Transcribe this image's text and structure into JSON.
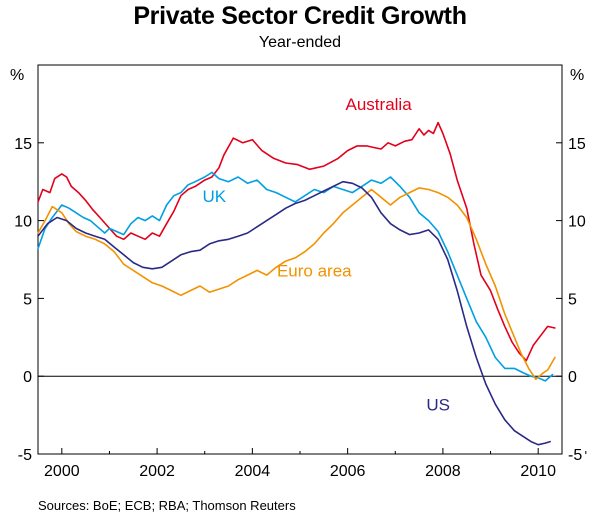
{
  "chart_data": {
    "type": "line",
    "title": "Private Sector Credit Growth",
    "subtitle": "Year-ended",
    "source": "Sources: BoE; ECB; RBA; Thomson Reuters",
    "ylabel_left": "%",
    "ylabel_right": "%",
    "xlim": [
      1999.5,
      2010.5
    ],
    "ylim": [
      -5,
      20
    ],
    "yticks": [
      -5,
      0,
      5,
      10,
      15
    ],
    "ytick_labels": [
      "-5",
      "0",
      "5",
      "10",
      "15"
    ],
    "xticks": [
      2000,
      2002,
      2004,
      2006,
      2008,
      2010
    ],
    "xtick_labels": [
      "2000",
      "2002",
      "2004",
      "2006",
      "2008",
      "2010"
    ],
    "series": [
      {
        "name": "Australia",
        "color": "#e3001b",
        "x": [
          1999.5,
          1999.6,
          1999.75,
          1999.85,
          2000.0,
          2000.1,
          2000.2,
          2000.35,
          2000.5,
          2000.65,
          2000.8,
          2001.0,
          2001.15,
          2001.3,
          2001.45,
          2001.6,
          2001.75,
          2001.9,
          2002.05,
          2002.2,
          2002.35,
          2002.5,
          2002.65,
          2002.8,
          2003.0,
          2003.15,
          2003.3,
          2003.4,
          2003.6,
          2003.8,
          2004.0,
          2004.2,
          2004.45,
          2004.7,
          2004.95,
          2005.2,
          2005.5,
          2005.8,
          2006.0,
          2006.2,
          2006.4,
          2006.55,
          2006.7,
          2006.85,
          2007.0,
          2007.2,
          2007.35,
          2007.5,
          2007.6,
          2007.7,
          2007.8,
          2007.9,
          2008.0,
          2008.15,
          2008.3,
          2008.5,
          2008.65,
          2008.8,
          2009.0,
          2009.15,
          2009.3,
          2009.45,
          2009.6,
          2009.75,
          2009.9,
          2010.05,
          2010.2,
          2010.35
        ],
        "y": [
          11.2,
          12.0,
          11.8,
          12.7,
          13.0,
          12.8,
          12.2,
          11.8,
          11.3,
          10.7,
          10.2,
          9.5,
          9.0,
          8.8,
          9.2,
          9.0,
          8.8,
          9.2,
          9.0,
          9.8,
          10.6,
          11.6,
          12.0,
          12.2,
          12.6,
          12.8,
          13.4,
          14.2,
          15.3,
          15.0,
          15.2,
          14.5,
          14.0,
          13.7,
          13.6,
          13.3,
          13.5,
          14.0,
          14.5,
          14.8,
          14.8,
          14.7,
          14.6,
          15.0,
          14.8,
          15.1,
          15.2,
          15.9,
          15.5,
          15.8,
          15.6,
          16.3,
          15.6,
          14.3,
          12.6,
          10.8,
          8.5,
          6.5,
          5.5,
          4.3,
          3.2,
          2.2,
          1.5,
          1.0,
          2.0,
          2.6,
          3.2,
          3.1
        ]
      },
      {
        "name": "UK",
        "color": "#009fe3",
        "x": [
          1999.5,
          1999.65,
          1999.8,
          2000.0,
          2000.15,
          2000.3,
          2000.45,
          2000.6,
          2000.75,
          2000.9,
          2001.0,
          2001.15,
          2001.3,
          2001.45,
          2001.6,
          2001.75,
          2001.9,
          2002.05,
          2002.2,
          2002.35,
          2002.5,
          2002.65,
          2002.8,
          2003.0,
          2003.15,
          2003.3,
          2003.5,
          2003.7,
          2003.9,
          2004.1,
          2004.3,
          2004.5,
          2004.7,
          2004.9,
          2005.1,
          2005.3,
          2005.5,
          2005.7,
          2005.9,
          2006.1,
          2006.3,
          2006.5,
          2006.7,
          2006.9,
          2007.1,
          2007.3,
          2007.5,
          2007.7,
          2007.9,
          2008.1,
          2008.3,
          2008.5,
          2008.7,
          2008.9,
          2009.1,
          2009.3,
          2009.5,
          2009.7,
          2009.85,
          2010.0,
          2010.15,
          2010.3
        ],
        "y": [
          8.2,
          9.5,
          10.2,
          11.0,
          10.8,
          10.5,
          10.2,
          10.0,
          9.6,
          9.2,
          9.5,
          9.3,
          9.1,
          9.8,
          10.2,
          10.0,
          10.3,
          10.0,
          11.0,
          11.6,
          11.8,
          12.3,
          12.5,
          12.8,
          13.1,
          12.7,
          12.5,
          12.8,
          12.4,
          12.6,
          12.0,
          11.8,
          11.5,
          11.2,
          11.6,
          12.0,
          11.8,
          12.2,
          12.0,
          11.8,
          12.2,
          12.6,
          12.4,
          12.8,
          12.2,
          11.5,
          10.5,
          10.0,
          9.3,
          8.0,
          6.5,
          5.0,
          3.5,
          2.5,
          1.2,
          0.5,
          0.5,
          0.2,
          0.0,
          -0.1,
          -0.3,
          0.1
        ]
      },
      {
        "name": "Euro area",
        "color": "#f39200",
        "x": [
          1999.5,
          1999.65,
          1999.8,
          2000.0,
          2000.15,
          2000.3,
          2000.5,
          2000.7,
          2000.9,
          2001.1,
          2001.3,
          2001.5,
          2001.7,
          2001.9,
          2002.1,
          2002.3,
          2002.5,
          2002.7,
          2002.9,
          2003.1,
          2003.3,
          2003.5,
          2003.7,
          2003.9,
          2004.1,
          2004.3,
          2004.5,
          2004.7,
          2004.9,
          2005.1,
          2005.3,
          2005.5,
          2005.7,
          2005.9,
          2006.1,
          2006.3,
          2006.5,
          2006.7,
          2006.9,
          2007.1,
          2007.3,
          2007.5,
          2007.7,
          2007.9,
          2008.1,
          2008.3,
          2008.5,
          2008.7,
          2008.9,
          2009.1,
          2009.3,
          2009.5,
          2009.65,
          2009.8,
          2009.95,
          2010.1,
          2010.2,
          2010.35
        ],
        "y": [
          9.2,
          10.0,
          10.9,
          10.5,
          9.8,
          9.3,
          9.0,
          8.8,
          8.5,
          8.0,
          7.2,
          6.8,
          6.4,
          6.0,
          5.8,
          5.5,
          5.2,
          5.5,
          5.8,
          5.4,
          5.6,
          5.8,
          6.2,
          6.5,
          6.8,
          6.5,
          7.0,
          7.4,
          7.6,
          8.0,
          8.5,
          9.2,
          9.8,
          10.5,
          11.0,
          11.5,
          12.0,
          11.5,
          11.0,
          11.5,
          11.8,
          12.1,
          12.0,
          11.8,
          11.5,
          11.0,
          10.2,
          8.8,
          7.2,
          5.8,
          4.0,
          2.5,
          1.4,
          0.5,
          -0.2,
          0.2,
          0.4,
          1.2
        ]
      },
      {
        "name": "US",
        "color": "#2a2a86",
        "x": [
          1999.5,
          1999.7,
          1999.9,
          2000.1,
          2000.3,
          2000.5,
          2000.7,
          2000.9,
          2001.1,
          2001.3,
          2001.5,
          2001.7,
          2001.9,
          2002.1,
          2002.3,
          2002.5,
          2002.7,
          2002.9,
          2003.1,
          2003.3,
          2003.5,
          2003.7,
          2003.9,
          2004.1,
          2004.3,
          2004.5,
          2004.7,
          2004.9,
          2005.1,
          2005.3,
          2005.5,
          2005.7,
          2005.9,
          2006.1,
          2006.3,
          2006.5,
          2006.7,
          2006.9,
          2007.1,
          2007.3,
          2007.5,
          2007.7,
          2007.9,
          2008.1,
          2008.3,
          2008.5,
          2008.7,
          2008.9,
          2009.1,
          2009.3,
          2009.5,
          2009.7,
          2009.85,
          2010.0,
          2010.15,
          2010.25
        ],
        "y": [
          9.0,
          9.8,
          10.2,
          10.0,
          9.5,
          9.2,
          9.0,
          8.8,
          8.3,
          7.8,
          7.3,
          7.0,
          6.9,
          7.0,
          7.4,
          7.8,
          8.0,
          8.1,
          8.5,
          8.7,
          8.8,
          9.0,
          9.2,
          9.6,
          10.0,
          10.4,
          10.8,
          11.1,
          11.3,
          11.6,
          11.9,
          12.2,
          12.5,
          12.4,
          12.1,
          11.5,
          10.5,
          9.8,
          9.4,
          9.1,
          9.2,
          9.4,
          8.8,
          7.5,
          5.5,
          3.2,
          1.2,
          -0.5,
          -1.8,
          -2.8,
          -3.5,
          -3.9,
          -4.2,
          -4.4,
          -4.3,
          -4.2
        ]
      }
    ],
    "labels": [
      {
        "text": "Australia",
        "series": "Australia",
        "x": 2006.65,
        "y": 17.1
      },
      {
        "text": "UK",
        "series": "UK",
        "x": 2003.2,
        "y": 11.2
      },
      {
        "text": "Euro area",
        "series": "Euro area",
        "x": 2005.3,
        "y": 6.4
      },
      {
        "text": "US",
        "series": "US",
        "x": 2007.9,
        "y": -2.2
      }
    ]
  }
}
